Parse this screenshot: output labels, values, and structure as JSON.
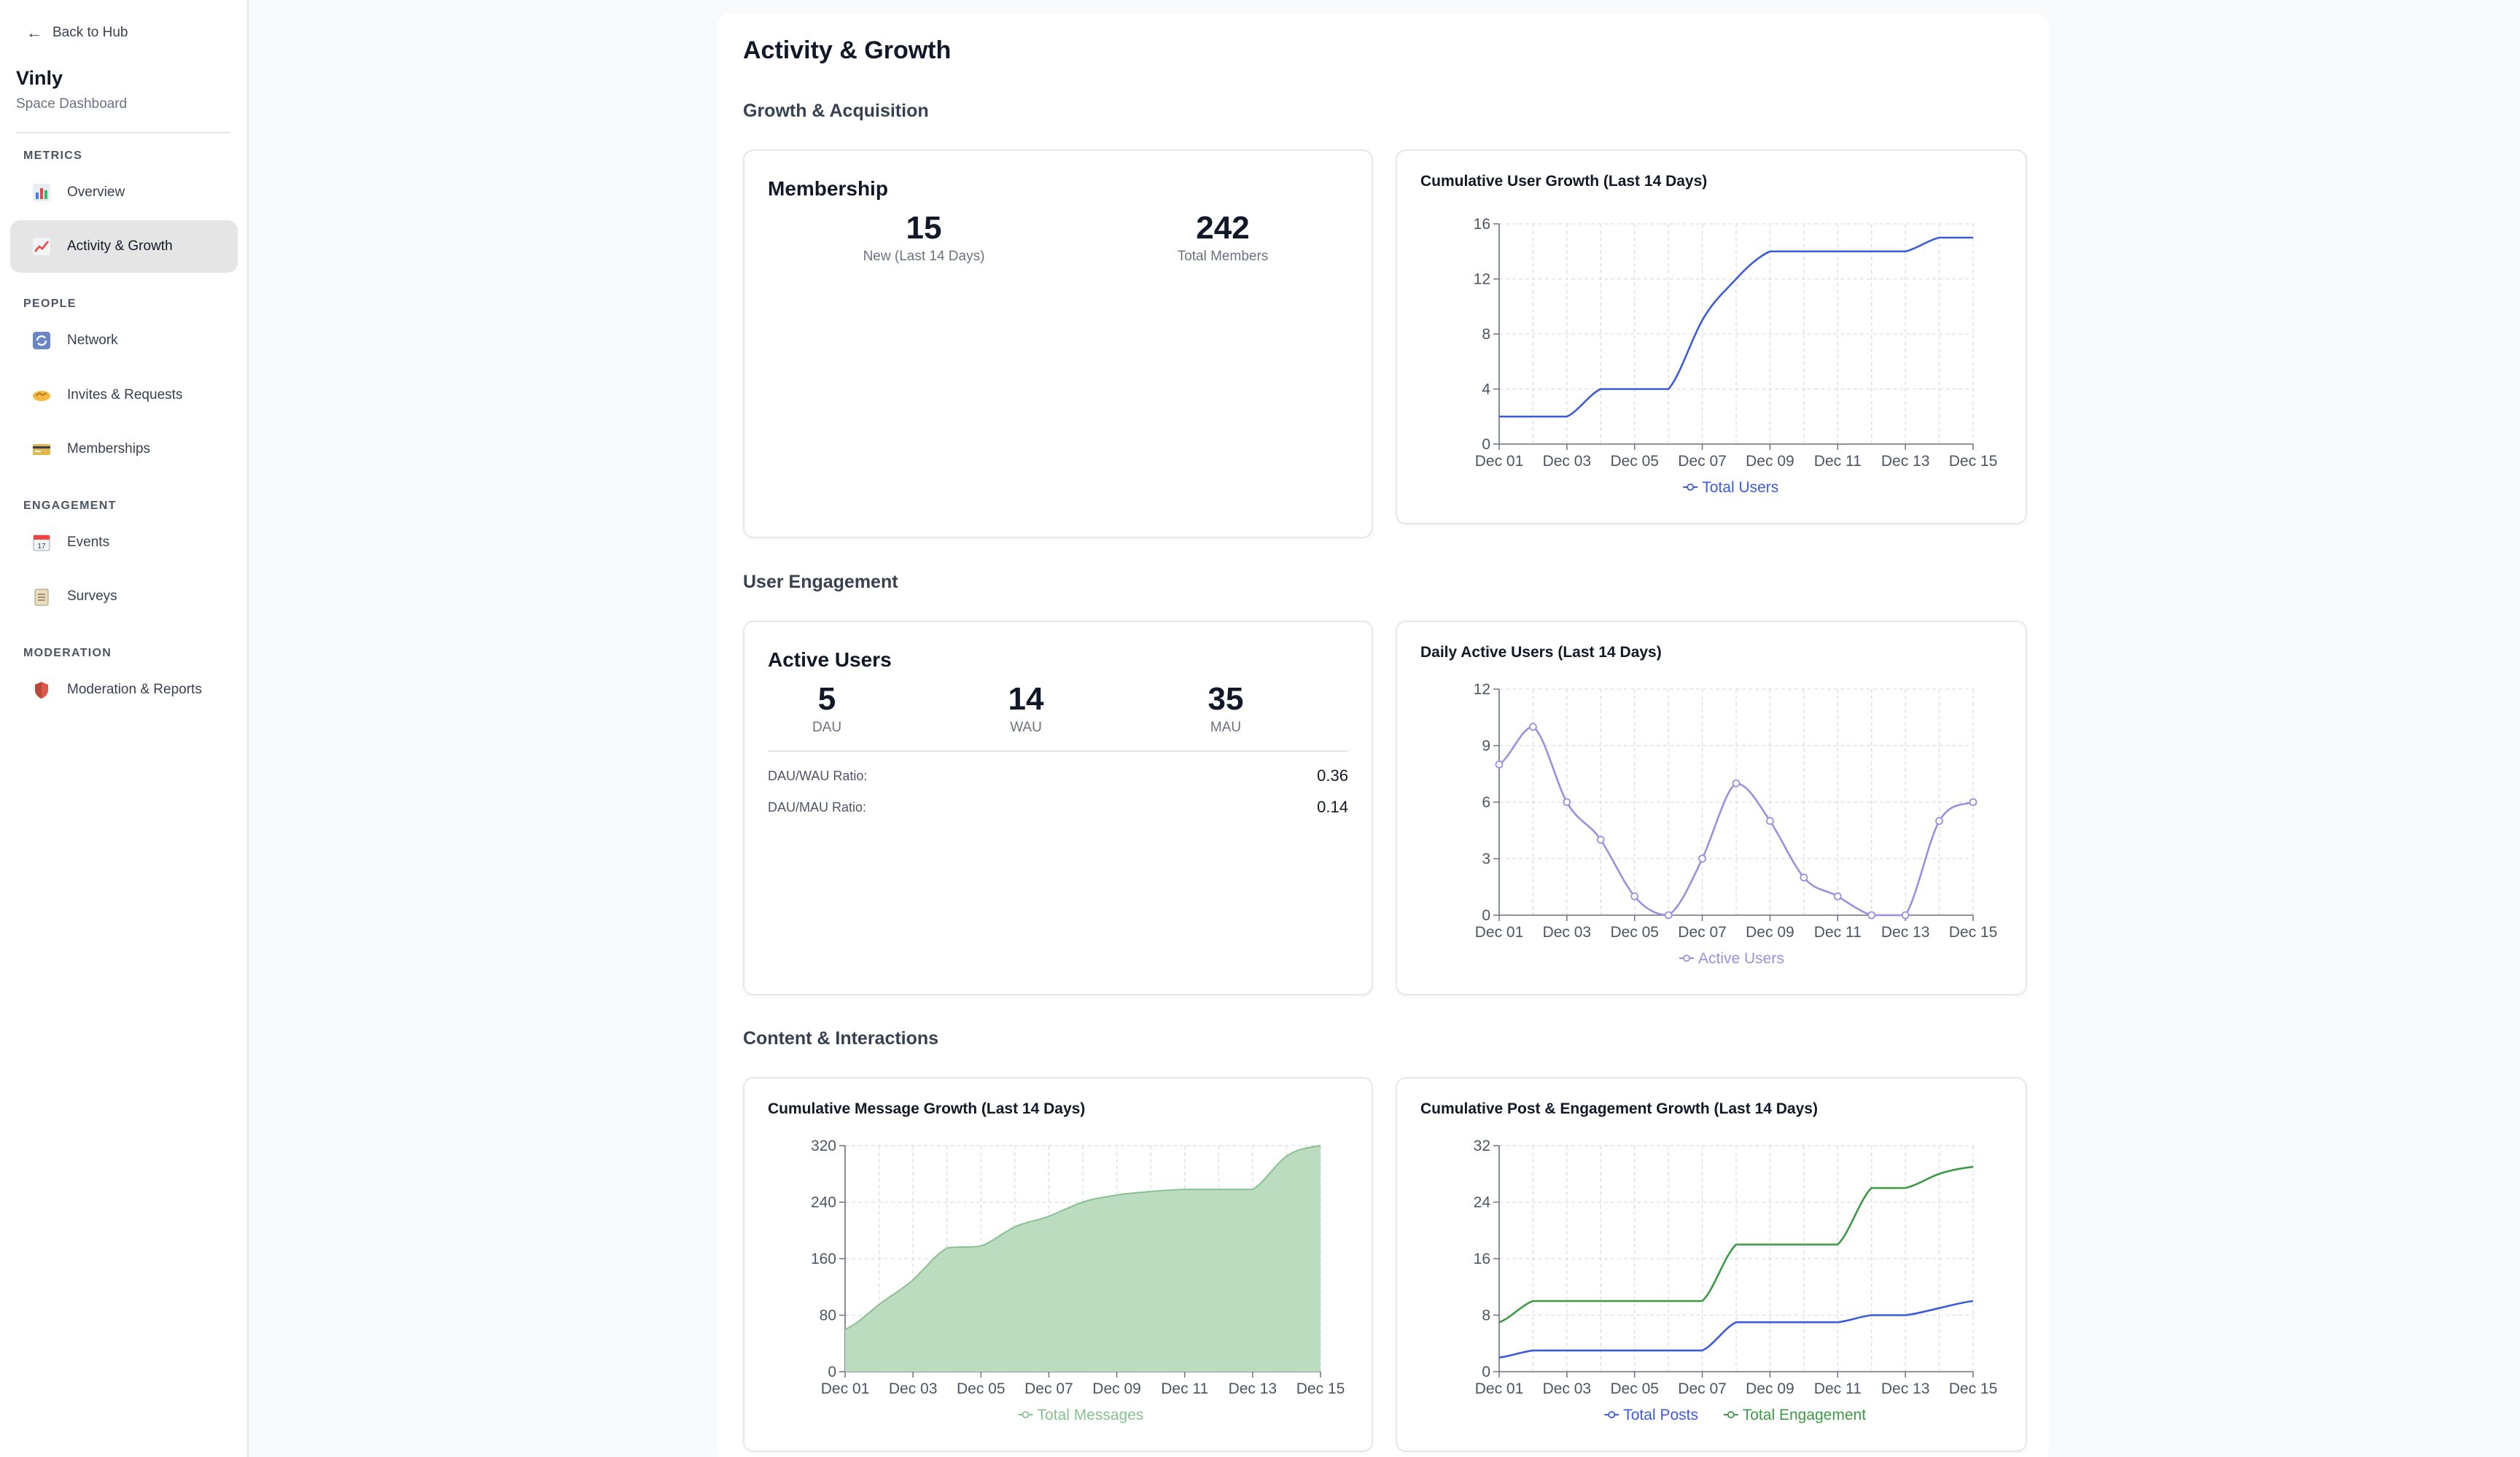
{
  "sidebar": {
    "back_label": "Back to Hub",
    "space_name": "Vinly",
    "space_subtitle": "Space Dashboard",
    "sections": {
      "metrics": "METRICS",
      "people": "PEOPLE",
      "engagement": "ENGAGEMENT",
      "moderation": "MODERATION"
    },
    "items": [
      {
        "label": "Overview",
        "icon": "bar-chart-icon"
      },
      {
        "label": "Activity & Growth",
        "icon": "trending-chart-icon"
      },
      {
        "label": "Network",
        "icon": "refresh-icon"
      },
      {
        "label": "Invites & Requests",
        "icon": "handshake-icon"
      },
      {
        "label": "Memberships",
        "icon": "credit-card-icon"
      },
      {
        "label": "Events",
        "icon": "calendar-icon"
      },
      {
        "label": "Surveys",
        "icon": "clipboard-icon"
      },
      {
        "label": "Moderation & Reports",
        "icon": "shield-icon"
      }
    ]
  },
  "page_title": "Activity & Growth",
  "sections": {
    "growth": "Growth & Acquisition",
    "engagement": "User Engagement",
    "content": "Content & Interactions"
  },
  "membership": {
    "title": "Membership",
    "new_value": "15",
    "new_label": "New (Last 14 Days)",
    "total_value": "242",
    "total_label": "Total Members"
  },
  "active_users": {
    "title": "Active Users",
    "dau_value": "5",
    "dau_label": "DAU",
    "wau_value": "14",
    "wau_label": "WAU",
    "mau_value": "35",
    "mau_label": "MAU",
    "dau_wau_label": "DAU/WAU Ratio:",
    "dau_wau_value": "0.36",
    "dau_mau_label": "DAU/MAU Ratio:",
    "dau_mau_value": "0.14"
  },
  "colors": {
    "blue": "#3b5bdb",
    "purple": "#9d8fe0",
    "green_line": "#86c28f",
    "green_fill": "#bcdcc0",
    "green_dark": "#3d9a45"
  },
  "chart_data": [
    {
      "type": "line",
      "title": "Cumulative User Growth (Last 14 Days)",
      "x": [
        "Dec 01",
        "Dec 02",
        "Dec 03",
        "Dec 04",
        "Dec 05",
        "Dec 06",
        "Dec 07",
        "Dec 08",
        "Dec 09",
        "Dec 10",
        "Dec 11",
        "Dec 12",
        "Dec 13",
        "Dec 14",
        "Dec 15"
      ],
      "x_tick_labels": [
        "Dec 01",
        "Dec 03",
        "Dec 05",
        "Dec 07",
        "Dec 09",
        "Dec 11",
        "Dec 13",
        "Dec 15"
      ],
      "ylim": [
        0,
        16
      ],
      "y_ticks": [
        "0",
        "4",
        "8",
        "12",
        "16"
      ],
      "series": [
        {
          "name": "Total Users",
          "values": [
            2,
            2,
            2,
            4,
            4,
            4,
            9,
            12,
            14,
            14,
            14,
            14,
            14,
            15,
            15
          ]
        }
      ],
      "legend": "bottom",
      "grid": true
    },
    {
      "type": "line",
      "title": "Daily Active Users (Last 14 Days)",
      "x": [
        "Dec 01",
        "Dec 01b",
        "Dec 02",
        "Dec 03",
        "Dec 04",
        "Dec 05",
        "Dec 06",
        "Dec 07",
        "Dec 08",
        "Dec 09",
        "Dec 10",
        "Dec 11",
        "Dec 12",
        "Dec 13",
        "Dec 14",
        "Dec 15"
      ],
      "x_positions": [
        0,
        0.5,
        1,
        2,
        3,
        4,
        5,
        6,
        7,
        8,
        9,
        10,
        11,
        12,
        13,
        14
      ],
      "x_tick_labels": [
        "Dec 01",
        "Dec 03",
        "Dec 05",
        "Dec 07",
        "Dec 09",
        "Dec 11",
        "Dec 13",
        "Dec 15"
      ],
      "ylim": [
        0,
        12
      ],
      "y_ticks": [
        "0",
        "3",
        "6",
        "9",
        "12"
      ],
      "series": [
        {
          "name": "Active Users",
          "values": [
            8,
            10,
            6,
            4,
            1,
            0,
            3,
            7,
            5,
            2,
            1,
            0,
            0,
            5,
            6
          ],
          "x": [
            0,
            1,
            2,
            3,
            4,
            5,
            6,
            7,
            8,
            9,
            10,
            11,
            12,
            13,
            14
          ]
        }
      ],
      "legend": "bottom",
      "grid": true
    },
    {
      "type": "area",
      "title": "Cumulative Message Growth (Last 14 Days)",
      "x": [
        "Dec 01",
        "Dec 02",
        "Dec 03",
        "Dec 04",
        "Dec 05",
        "Dec 06",
        "Dec 07",
        "Dec 08",
        "Dec 09",
        "Dec 10",
        "Dec 11",
        "Dec 12",
        "Dec 13",
        "Dec 14",
        "Dec 15"
      ],
      "x_tick_labels": [
        "Dec 01",
        "Dec 03",
        "Dec 05",
        "Dec 07",
        "Dec 09",
        "Dec 11",
        "Dec 13",
        "Dec 15"
      ],
      "ylim": [
        0,
        320
      ],
      "y_ticks": [
        "0",
        "80",
        "160",
        "240",
        "320"
      ],
      "series": [
        {
          "name": "Total Messages",
          "values": [
            60,
            95,
            130,
            175,
            178,
            205,
            220,
            240,
            250,
            255,
            258,
            258,
            258,
            305,
            320
          ]
        }
      ],
      "legend": "bottom",
      "grid": true
    },
    {
      "type": "line",
      "title": "Cumulative Post & Engagement Growth (Last 14 Days)",
      "x": [
        "Dec 01",
        "Dec 02",
        "Dec 03",
        "Dec 04",
        "Dec 05",
        "Dec 06",
        "Dec 07",
        "Dec 08",
        "Dec 09",
        "Dec 10",
        "Dec 11",
        "Dec 12",
        "Dec 13",
        "Dec 14",
        "Dec 15"
      ],
      "x_tick_labels": [
        "Dec 01",
        "Dec 03",
        "Dec 05",
        "Dec 07",
        "Dec 09",
        "Dec 11",
        "Dec 13",
        "Dec 15"
      ],
      "ylim": [
        0,
        32
      ],
      "y_ticks": [
        "0",
        "8",
        "16",
        "24",
        "32"
      ],
      "series": [
        {
          "name": "Total Posts",
          "values": [
            2,
            3,
            3,
            3,
            3,
            3,
            3,
            7,
            7,
            7,
            7,
            8,
            8,
            9,
            10
          ]
        },
        {
          "name": "Total Engagement",
          "values": [
            7,
            10,
            10,
            10,
            10,
            10,
            10,
            18,
            18,
            18,
            18,
            26,
            26,
            28,
            29
          ]
        }
      ],
      "legend": "bottom",
      "grid": true
    }
  ]
}
